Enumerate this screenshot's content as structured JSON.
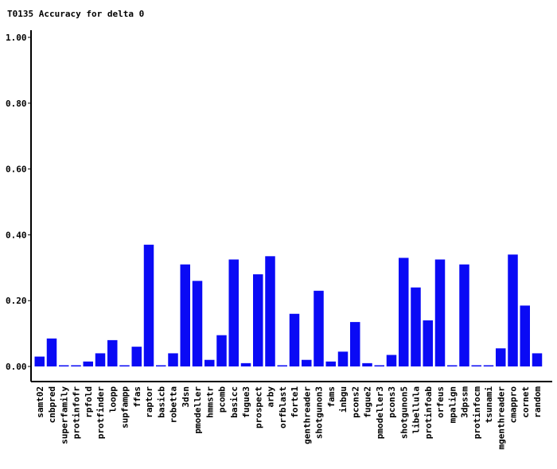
{
  "chart_data": {
    "type": "bar",
    "title": "T0135 Accuracy for delta 0",
    "xlabel": "",
    "ylabel": "",
    "ylim": [
      0,
      1.0
    ],
    "yticks": [
      "0.00",
      "0.20",
      "0.40",
      "0.60",
      "0.80",
      "1.00"
    ],
    "bar_color": "#0a0af5",
    "grid": false,
    "categories": [
      "samt02",
      "cnbpred",
      "superfamily",
      "protinfofr",
      "rpfold",
      "protfinder",
      "loopp",
      "supfampp",
      "ffas",
      "raptor",
      "basicb",
      "robetta",
      "3dsn",
      "pmodeller",
      "hmmstr",
      "pcomb",
      "basicc",
      "fugue3",
      "prospect",
      "arby",
      "orfblast",
      "forte1",
      "genthreader",
      "shotgunon3",
      "fams",
      "inbgu",
      "pcons2",
      "fugue2",
      "pmodeller3",
      "pcons3",
      "shotgunon5",
      "libellula",
      "protinfoab",
      "orfeus",
      "mpalign",
      "3dpssm",
      "protinfocm",
      "tsunami",
      "mgenthreader",
      "cmappro",
      "cornet",
      "random"
    ],
    "values": [
      0.03,
      0.085,
      0.0,
      0.0,
      0.015,
      0.04,
      0.08,
      0.0,
      0.06,
      0.37,
      0.0,
      0.04,
      0.31,
      0.26,
      0.02,
      0.095,
      0.325,
      0.01,
      0.28,
      0.335,
      0.0,
      0.16,
      0.02,
      0.23,
      0.015,
      0.045,
      0.135,
      0.01,
      0.0,
      0.035,
      0.33,
      0.24,
      0.14,
      0.325,
      0.0,
      0.31,
      0.0,
      0.0,
      0.055,
      0.34,
      0.185,
      0.04
    ]
  }
}
